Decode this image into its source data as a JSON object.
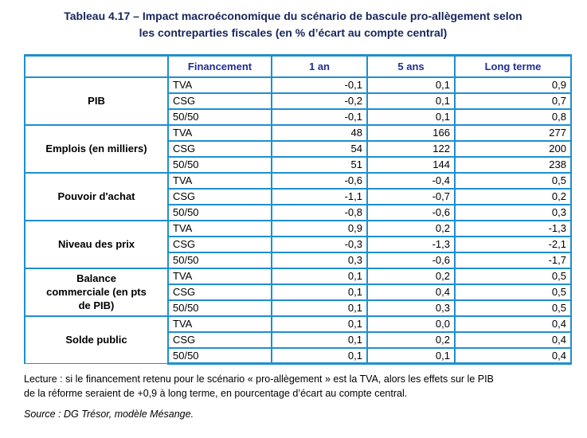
{
  "title": "Tableau 4.17 – Impact macroéconomique du scénario de bascule pro-allègement selon\nles contreparties fiscales (en % d’écart au compte central)",
  "table": {
    "headers": [
      "",
      "Financement",
      "1 an",
      "5 ans",
      "Long terme"
    ],
    "groups": [
      {
        "label": "PIB",
        "rows": [
          [
            "TVA",
            "-0,1",
            "0,1",
            "0,9"
          ],
          [
            "CSG",
            "-0,2",
            "0,1",
            "0,7"
          ],
          [
            "50/50",
            "-0,1",
            "0,1",
            "0,8"
          ]
        ]
      },
      {
        "label": "Emplois (en milliers)",
        "rows": [
          [
            "TVA",
            "48",
            "166",
            "277"
          ],
          [
            "CSG",
            "54",
            "122",
            "200"
          ],
          [
            "50/50",
            "51",
            "144",
            "238"
          ]
        ]
      },
      {
        "label": "Pouvoir d'achat",
        "rows": [
          [
            "TVA",
            "-0,6",
            "-0,4",
            "0,5"
          ],
          [
            "CSG",
            "-1,1",
            "-0,7",
            "0,2"
          ],
          [
            "50/50",
            "-0,8",
            "-0,6",
            "0,3"
          ]
        ]
      },
      {
        "label": "Niveau des prix",
        "rows": [
          [
            "TVA",
            "0,9",
            "0,2",
            "-1,3"
          ],
          [
            "CSG",
            "-0,3",
            "-1,3",
            "-2,1"
          ],
          [
            "50/50",
            "0,3",
            "-0,6",
            "-1,7"
          ]
        ]
      },
      {
        "label": "Balance\ncommerciale (en pts\nde PIB)",
        "rows": [
          [
            "TVA",
            "0,1",
            "0,2",
            "0,5"
          ],
          [
            "CSG",
            "0,1",
            "0,4",
            "0,5"
          ],
          [
            "50/50",
            "0,1",
            "0,3",
            "0,5"
          ]
        ]
      },
      {
        "label": "Solde public",
        "rows": [
          [
            "TVA",
            "0,1",
            "0,0",
            "0,4"
          ],
          [
            "CSG",
            "0,1",
            "0,2",
            "0,4"
          ],
          [
            "50/50",
            "0,1",
            "0,1",
            "0,4"
          ]
        ]
      }
    ]
  },
  "notes": {
    "lecture": "Lecture : si le financement retenu pour le scénario « pro-allègement » est la TVA, alors les effets sur le PIB\nde la réforme seraient de +0,9 à long terme, en pourcentage d’écart au compte central.",
    "source": "Source : DG Trésor, modèle Mésange."
  },
  "colors": {
    "border": "#1e8fd0",
    "header_text": "#212e8f",
    "title_text": "#17255a",
    "body_text": "#000000"
  }
}
